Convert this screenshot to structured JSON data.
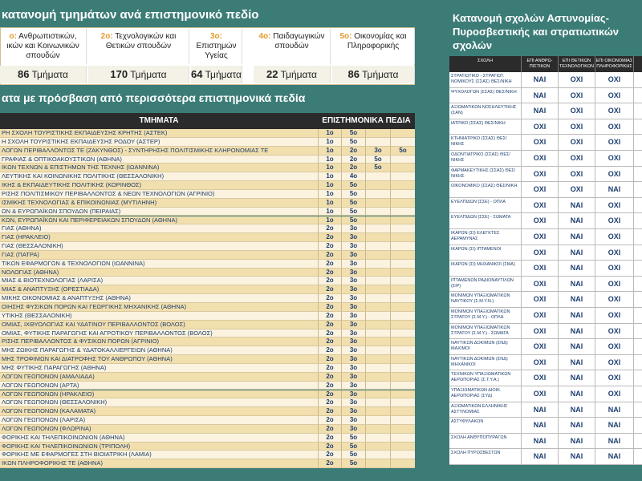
{
  "left": {
    "title": "κατανομή τμημάτων ανά επιστημονικό πεδίο",
    "fields": [
      {
        "code": "ο:",
        "name": "Ανθρωπιστικών, ικών και Κοινωνικών σπουδών",
        "count": 86,
        "unit": "Τμήματα"
      },
      {
        "code": "2ο:",
        "name": "Τεχνολογικών και Θετικών σπουδών",
        "count": 170,
        "unit": "Τμήματα"
      },
      {
        "code": "3ο:",
        "name": "Επιστημών Υγείας",
        "count": 64,
        "unit": "Τμήματα"
      },
      {
        "code": "4ο:",
        "name": "Παιδαγωγικών σπουδών",
        "count": 22,
        "unit": "Τμήματα"
      },
      {
        "code": "5ο:",
        "name": "Οικονομίας και Πληροφορικής",
        "count": 86,
        "unit": "Τμήματα"
      }
    ],
    "subtitle": "ατα με πρόσβαση από περισσότερα επιστημονικά πεδία",
    "table": {
      "headers": [
        "ΤΜΗΜΑΤΑ",
        "ΕΠΙΣΤΗΜΟΝΙΚΑ ΠΕΔΙΑ"
      ],
      "rows": [
        {
          "name": "ΡΗ ΣΧΟΛΗ ΤΟΥΡΙΣΤΙΚΗΣ ΕΚΠΑΙΔΕΥΣΗΣ ΚΡΗΤΗΣ (ΑΣΤΕΚ)",
          "fields": [
            "1ο",
            "5ο"
          ]
        },
        {
          "name": "Η ΣΧΟΛΗ ΤΟΥΡΙΣΤΙΚΗΣ ΕΚΠΑΙΔΕΥΣΗΣ ΡΟΔΟΥ (ΑΣΤΕΡ)",
          "fields": [
            "1ο",
            "5ο"
          ]
        },
        {
          "name": "ΛΟΓΩΝ ΠΕΡΙΒΑΛΛΟΝΤΟΣ ΤΕ (ΖΑΚΥΝΘΟΣ) - ΣΥΝΤΗΡΗΣΗΣ ΠΟΛΙΤΙΣΜΙΚΗΣ ΚΛΗΡΟΝΟΜΙΑΣ ΤΕ",
          "fields": [
            "1ο",
            "2ο",
            "3ο",
            "5ο"
          ]
        },
        {
          "name": "ΓΡΑΦΙΑΣ & ΟΠΤΙΚΟΑΚΟΥΣΤΙΚΩΝ (ΑΘΗΝΑ)",
          "fields": [
            "1ο",
            "2ο",
            "5ο"
          ]
        },
        {
          "name": "ΙΚΩΝ ΤΕΧΝΩΝ & ΕΠΙΣΤΗΜΩΝ ΤΗΣ ΤΕΧΝΗΣ (ΙΩΑΝΝΙΝΑ)",
          "fields": [
            "1ο",
            "2ο",
            "5ο"
          ]
        },
        {
          "name": "ΛΕΥΤΙΚΗΣ ΚΑΙ ΚΟΙΝΩΝΙΚΗΣ ΠΟΛΙΤΙΚΗΣ (ΘΕΣΣΑΛΟΝΙΚΗ)",
          "fields": [
            "1ο",
            "4ο"
          ]
        },
        {
          "name": "ΙΚΗΣ & ΕΚΠΑΙΔΕΥΤΙΚΗΣ ΠΟΛΙΤΙΚΗΣ (ΚΟΡΙΝΘΟΣ)",
          "fields": [
            "1ο",
            "5ο"
          ]
        },
        {
          "name": "ΡΙΣΗΣ ΠΟΛΙΤΙΣΜΙΚΟΥ ΠΕΡΙΒΑΛΛΟΝΤΟΣ & ΝΕΩΝ ΤΕΧΝΟΛΟΓΙΩΝ (ΑΓΡΙΝΙΟ)",
          "fields": [
            "1ο",
            "5ο"
          ]
        },
        {
          "name": "ΙΣΜΙΚΗΣ ΤΕΧΝΟΛΟΓΙΑΣ & ΕΠΙΚΟΙΝΩΝΙΑΣ (ΜΥΤΙΛΗΝΗ)",
          "fields": [
            "1ο",
            "5ο"
          ]
        },
        {
          "name": "ΩΝ & ΕΥΡΩΠΑΪΚΩΝ ΣΠΟΥΔΩΝ (ΠΕΙΡΑΙΑΣ)",
          "fields": [
            "1ο",
            "5ο"
          ]
        },
        {
          "name": "ΚΩΝ, ΕΥΡΩΠΑΪΚΩΝ ΚΑΙ ΠΕΡΙΦΕΡΕΙΑΚΩΝ ΣΠΟΥΔΩΝ (ΑΘΗΝΑ)",
          "fields": [
            "1ο",
            "5ο"
          ]
        },
        {
          "name": "ΓΙΑΣ (ΑΘΗΝΑ)",
          "fields": [
            "2ο",
            "3ο"
          ]
        },
        {
          "name": "ΓΙΑΣ (ΗΡΑΚΛΕΙΟ)",
          "fields": [
            "2ο",
            "3ο"
          ]
        },
        {
          "name": "ΓΙΑΣ (ΘΕΣΣΑΛΟΝΙΚΗ)",
          "fields": [
            "2ο",
            "3ο"
          ]
        },
        {
          "name": "ΓΙΑΣ (ΠΑΤΡΑ)",
          "fields": [
            "2ο",
            "3ο"
          ]
        },
        {
          "name": "ΤΙΚΩΝ ΕΦΑΡΜΟΓΩΝ & ΤΕΧΝΟΛΟΓΙΩΝ (ΙΩΑΝΝΙΝΑ)",
          "fields": [
            "2ο",
            "3ο"
          ]
        },
        {
          "name": "ΝΟΛΟΓΙΑΣ (ΑΘΗΝΑ)",
          "fields": [
            "2ο",
            "3ο"
          ]
        },
        {
          "name": "ΜΙΑΣ & ΒΙΟΤΕΧΝΟΛΟΓΙΑΣ (ΛΑΡΙΣΑ)",
          "fields": [
            "2ο",
            "3ο"
          ]
        },
        {
          "name": "ΜΙΑΣ & ΑΝΑΠΤΥΞΗΣ (ΟΡΕΣΤΙΑΔΑ)",
          "fields": [
            "2ο",
            "3ο"
          ]
        },
        {
          "name": "ΜΙΚΗΣ ΟΙΚΟΝΟΜΙΑΣ & ΑΝΑΠΤΥΞΗΣ (ΑΘΗΝΑ)",
          "fields": [
            "2ο",
            "3ο"
          ]
        },
        {
          "name": "ΟΙΗΣΗΣ ΦΥΣΙΚΩΝ ΠΟΡΩΝ ΚΑΙ ΓΕΩΡΓΙΚΗΣ ΜΗΧΑΝΙΚΗΣ (ΑΘΗΝΑ)",
          "fields": [
            "2ο",
            "3ο"
          ]
        },
        {
          "name": "ΥΤΙΚΗΣ (ΘΕΣΣΑΛΟΝΙΚΗ)",
          "fields": [
            "2ο",
            "3ο"
          ]
        },
        {
          "name": "ΟΜΙΑΣ, ΙΧΘΥΟΛΟΓΙΑΣ ΚΑΙ ΥΔΑΤΙΝΟΥ ΠΕΡΙΒΑΛΛΟΝΤΟΣ (ΒΟΛΟΣ)",
          "fields": [
            "2ο",
            "3ο"
          ]
        },
        {
          "name": "ΟΜΙΑΣ, ΦΥΤΙΚΗΣ ΠΑΡΑΓΩΓΗΣ ΚΑΙ ΑΓΡΟΤΙΚΟΥ ΠΕΡΙΒΑΛΛΟΝΤΟΣ (ΒΟΛΟΣ)",
          "fields": [
            "2ο",
            "3ο"
          ]
        },
        {
          "name": "ΡΙΣΗΣ ΠΕΡΙΒΑΛΛΟΝΤΟΣ & ΦΥΣΙΚΩΝ ΠΟΡΩΝ (ΑΓΡΙΝΙΟ)",
          "fields": [
            "2ο",
            "3ο"
          ]
        },
        {
          "name": "ΜΗΣ ΖΩΙΚΗΣ ΠΑΡΑΓΩΓΗΣ & ΥΔΑΤΟΚΑΛΛΙΕΡΓΕΙΩΝ (ΑΘΗΝΑ)",
          "fields": [
            "2ο",
            "3ο"
          ]
        },
        {
          "name": "ΜΗΣ ΤΡΟΦΙΜΩΝ ΚΑΙ ΔΙΑΤΡΟΦΗΣ ΤΟΥ ΑΝΘΡΩΠΟΥ (ΑΘΗΝΑ)",
          "fields": [
            "2ο",
            "3ο"
          ]
        },
        {
          "name": "ΜΗΣ ΦΥΤΙΚΗΣ ΠΑΡΑΓΩΓΗΣ (ΑΘΗΝΑ)",
          "fields": [
            "2ο",
            "3ο"
          ]
        },
        {
          "name": "ΛΟΓΩΝ ΓΕΩΠΟΝΩΝ (ΑΜΑΛΙΑΔΑ)",
          "fields": [
            "2ο",
            "3ο"
          ]
        },
        {
          "name": "ΛΟΓΩΝ ΓΕΩΠΟΝΩΝ (ΑΡΤΑ)",
          "fields": [
            "2ο",
            "3ο"
          ]
        },
        {
          "name": "ΛΟΓΩΝ ΓΕΩΠΟΝΩΝ (ΗΡΑΚΛΕΙΟ)",
          "fields": [
            "2ο",
            "3ο"
          ]
        },
        {
          "name": "ΛΟΓΩΝ ΓΕΩΠΟΝΩΝ (ΘΕΣΣΑΛΟΝΙΚΗ)",
          "fields": [
            "2ο",
            "3ο"
          ]
        },
        {
          "name": "ΛΟΓΩΝ ΓΕΩΠΟΝΩΝ (ΚΑΛΑΜΑΤΑ)",
          "fields": [
            "2ο",
            "3ο"
          ]
        },
        {
          "name": "ΛΟΓΩΝ ΓΕΩΠΟΝΩΝ (ΛΑΡΙΣΑ)",
          "fields": [
            "2ο",
            "3ο"
          ]
        },
        {
          "name": "ΛΟΓΩΝ ΓΕΩΠΟΝΩΝ (ΦΛΩΡΙΝΑ)",
          "fields": [
            "2ο",
            "3ο"
          ]
        },
        {
          "name": "ΦΟΡΙΚΗΣ ΚΑΙ ΤΗΛΕΠΙΚΟΙΝΩΝΙΩΝ (ΑΘΗΝΑ)",
          "fields": [
            "2ο",
            "5ο"
          ]
        },
        {
          "name": "ΦΟΡΙΚΗΣ ΚΑΙ ΤΗΛΕΠΙΚΟΙΝΩΝΙΩΝ (ΤΡΙΠΟΛΗ)",
          "fields": [
            "2ο",
            "5ο"
          ]
        },
        {
          "name": "ΦΟΡΙΚΗΣ ΜΕ ΕΦΑΡΜΟΓΕΣ ΣΤΗ ΒΙΟΙΑΤΡΙΚΗ (ΛΑΜΙΑ)",
          "fields": [
            "2ο",
            "5ο"
          ]
        },
        {
          "name": "ΙΚΩΝ ΠΛΗΡΟΦΟΡΙΚΗΣ ΤΕ (ΑΘΗΝΑ)",
          "fields": [
            "2ο",
            "5ο"
          ]
        }
      ]
    }
  },
  "right": {
    "title": "Κατανομή σχολών Αστυνομίας-Πυροσβεστικής και στρατιωτικών σχολών",
    "table": {
      "headers": [
        "ΣΧΟΛΗ",
        "ΕΠΙ ΑΝΘΡΩ-ΠΙΣΤΙΚΩΝ",
        "ΕΠΙ ΘΕΤΙΚΩΝ ΤΕΧΝΟΛΟΓΙΚΩΝ",
        "ΕΠΙ ΟΙΚΟΝΟΜΙΑΣ ΠΛΗΡΟΦΟΡΙΚΗΣ"
      ],
      "rows": [
        [
          "ΣΤΡΑΤΙΩΤΙΚΟ - ΣΤΡΑΤΙΩΤ. ΝΟΜΙΚΟΥΣ (ΣΣΑΣ) ΘΕΣ/ΝΙΚΗ",
          "ΝΑΙ",
          "ΟΧΙ",
          "ΟΧΙ"
        ],
        [
          "ΨΥΧΟΛΟΓΩΝ (ΣΣΑΣ) ΘΕΣ/ΝΙΚΗ",
          "ΝΑΙ",
          "ΟΧΙ",
          "ΟΧΙ"
        ],
        [
          "ΑΞΙΩΜΑΤΙΚΩΝ ΝΟΣΗΛΕΥΤΙΚΗΣ (ΣΑΝ)",
          "ΝΑΙ",
          "ΟΧΙ",
          "ΟΧΙ"
        ],
        [
          "ΙΑΤΡΙΚΟ (ΣΣΑΣ) ΘΕΣ/ΝΙΚΗ",
          "ΟΧΙ",
          "ΟΧΙ",
          "ΟΧΙ"
        ],
        [
          "ΚΤΗΝΙΑΤΡΙΚΟ (ΣΣΑΣ) ΘΕΣ/ΝΙΚΗΣ",
          "ΟΧΙ",
          "ΟΧΙ",
          "ΟΧΙ"
        ],
        [
          "ΟΔΟΝΤΙΑΤΡΙΚΟ (ΣΣΑΣ) ΘΕΣ/ΝΙΚΗΣ",
          "ΟΧΙ",
          "ΟΧΙ",
          "ΟΧΙ"
        ],
        [
          "ΦΑΡΜΑΚΕΥΤΙΚΗΣ (ΣΣΑΣ) ΘΕΣ/ΝΙΚΗΣ",
          "ΟΧΙ",
          "ΟΧΙ",
          "ΟΧΙ"
        ],
        [
          "ΟΙΚΟΝΟΜΙΚΟ (ΣΣΑΣ) ΘΕΣ/ΝΙΚΗ",
          "ΟΧΙ",
          "ΟΧΙ",
          "ΝΑΙ"
        ],
        [
          "ΕΥΕΛΠΙΔΩΝ (ΣΣΕ) - ΟΠΛΑ",
          "ΟΧΙ",
          "ΝΑΙ",
          "ΟΧΙ"
        ],
        [
          "ΕΥΕΛΠΙΔΩΝ (ΣΣΕ) - ΣΩΜΑΤΑ",
          "ΟΧΙ",
          "ΝΑΙ",
          "ΟΧΙ"
        ],
        [
          "ΙΚΑΡΩΝ (ΣΙ) ΕΛΕΓΚΤΕΣ ΑΕΡΑΜΥΝΑΣ",
          "ΟΧΙ",
          "ΝΑΙ",
          "ΟΧΙ"
        ],
        [
          "ΙΚΑΡΩΝ (ΣΙ) ΙΠΤΑΜΕΝΟΙ",
          "ΟΧΙ",
          "ΝΑΙ",
          "ΟΧΙ"
        ],
        [
          "ΙΚΑΡΩΝ (ΣΙ) ΜΗΧΑΝΙΚΟΙ (ΣΜΑ)",
          "ΟΧΙ",
          "ΝΑΙ",
          "ΟΧΙ"
        ],
        [
          "ΙΠΤΑΜΕΝΩΝ ΡΑΔΙΟΝΑΥΤΙΛΩΝ (ΣΙΡ)",
          "ΟΧΙ",
          "ΝΑΙ",
          "ΟΧΙ"
        ],
        [
          "ΜΟΝΙΜΩΝ ΥΠΑΞΙΩΜΑΤΙΚΩΝ ΝΑΥΤΙΚΟΥ (Σ.Μ.Υ.Ν.)",
          "ΟΧΙ",
          "ΝΑΙ",
          "ΟΧΙ"
        ],
        [
          "ΜΟΝΙΜΩΝ ΥΠΑΞΙΩΜΑΤΙΚΩΝ ΣΤΡΑΤΟΥ (Σ.Μ.Υ.) - ΟΠΛΑ",
          "ΟΧΙ",
          "ΝΑΙ",
          "ΟΧΙ"
        ],
        [
          "ΜΟΝΙΜΩΝ ΥΠΑΞΙΩΜΑΤΙΚΩΝ ΣΤΡΑΤΟΥ (Σ.Μ.Υ.) - ΣΩΜΑΤΑ",
          "ΟΧΙ",
          "ΝΑΙ",
          "ΟΧΙ"
        ],
        [
          "ΝΑΥΤΙΚΩΝ ΔΟΚΙΜΩΝ (ΣΝΔ) ΜΑΧΙΜΟΙ",
          "ΟΧΙ",
          "ΝΑΙ",
          "ΟΧΙ"
        ],
        [
          "ΝΑΥΤΙΚΩΝ ΔΟΚΙΜΩΝ (ΣΝΔ) ΜΗΧΑΝΙΚΟΙ",
          "ΟΧΙ",
          "ΝΑΙ",
          "ΟΧΙ"
        ],
        [
          "ΤΕΧΝΙΚΩΝ ΥΠΑΞΙΩΜΑΤΙΚΩΝ ΑΕΡΟΠΟΡΙΑΣ (Σ.Τ.Υ.Α.)",
          "ΟΧΙ",
          "ΝΑΙ",
          "ΟΧΙ"
        ],
        [
          "ΥΠΑΞΙΩΜΑΤΙΚΩΝ ΔΙΟΙΚ. ΑΕΡΟΠΟΡΙΑΣ (ΣΥΔ)",
          "ΟΧΙ",
          "ΝΑΙ",
          "ΟΧΙ"
        ],
        [
          "ΑΞΙΩΜΑΤΙΚΩΝ ΕΛΛΗΝΙΚΗΣ ΑΣΤΥΝΟΜΙΑΣ",
          "ΝΑΙ",
          "ΝΑΙ",
          "ΝΑΙ"
        ],
        [
          "ΑΣΤΥΦΥΛΑΚΩΝ",
          "ΝΑΙ",
          "ΝΑΙ",
          "ΝΑΙ"
        ],
        [
          "ΣΧΟΛΗ ΑΝΘΥΠΟΠΥΡΑΓΩΝ",
          "ΝΑΙ",
          "ΝΑΙ",
          "ΝΑΙ"
        ],
        [
          "ΣΧΟΛΗ ΠΥΡΟΣΒΕΣΤΩΝ",
          "ΝΑΙ",
          "ΝΑΙ",
          "ΝΑΙ"
        ]
      ]
    }
  }
}
